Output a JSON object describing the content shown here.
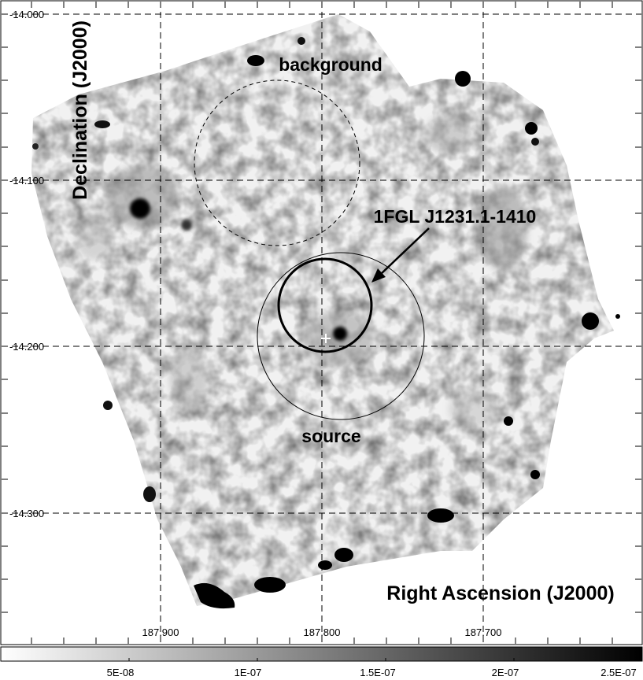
{
  "figure": {
    "x_axis_label": "Right Ascension (J2000)",
    "y_axis_label": "Declination (J2000)",
    "x_ticks": [
      "187.900",
      "187.800",
      "187.700"
    ],
    "y_ticks": [
      "-14.000",
      "-14.100",
      "-14.200",
      "-14.300"
    ],
    "annotations": {
      "background": "background",
      "source": "source",
      "fgl": "1FGL J1231.1-1410"
    },
    "colorbar_ticks": [
      "5E-08",
      "1E-07",
      "1.5E-07",
      "2E-07",
      "2.5E-07"
    ],
    "colors": {
      "background": "#ffffff",
      "ink": "#000000",
      "grid": "#000000"
    }
  }
}
